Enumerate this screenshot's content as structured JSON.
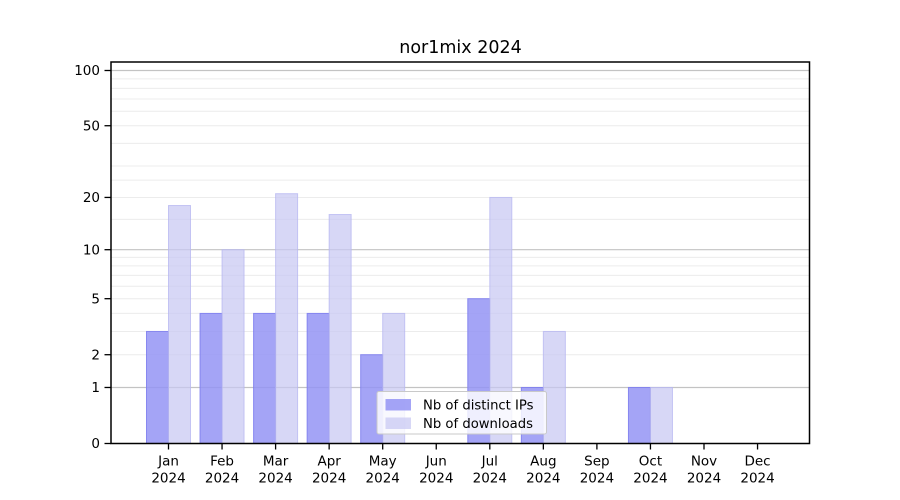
{
  "chart_data": {
    "type": "bar",
    "title": "nor1mix 2024",
    "categories": [
      "Jan",
      "Feb",
      "Mar",
      "Apr",
      "May",
      "Jun",
      "Jul",
      "Aug",
      "Sep",
      "Oct",
      "Nov",
      "Dec"
    ],
    "year_label": "2024",
    "series": [
      {
        "name": "Nb of distinct IPs",
        "values": [
          3,
          4,
          4,
          4,
          2,
          0,
          5,
          1,
          0,
          1,
          0,
          0
        ],
        "fill": "rgba(148,148,244,0.85)",
        "stroke": "rgba(128,128,238,0.9)"
      },
      {
        "name": "Nb of downloads",
        "values": [
          18,
          10,
          21,
          16,
          4,
          0,
          20,
          3,
          0,
          1,
          0,
          0
        ],
        "fill": "rgba(199,199,243,0.72)",
        "stroke": "rgba(182,182,240,0.75)"
      }
    ],
    "yscale": "log1p",
    "ylim": [
      0,
      100
    ],
    "yticks": [
      0,
      1,
      2,
      5,
      10,
      20,
      50,
      100
    ],
    "major_gridlines": [
      1,
      10,
      100
    ],
    "minor_gridlines": [
      2,
      3,
      4,
      5,
      6,
      7,
      8,
      9,
      15,
      20,
      25,
      30,
      40,
      50,
      60,
      70,
      80,
      90
    ],
    "grid": "on",
    "legend_position": "inside-bottom-center",
    "axis_color": "#000000",
    "major_grid_color": "#c3c3c3",
    "minor_grid_color": "#ececec"
  }
}
